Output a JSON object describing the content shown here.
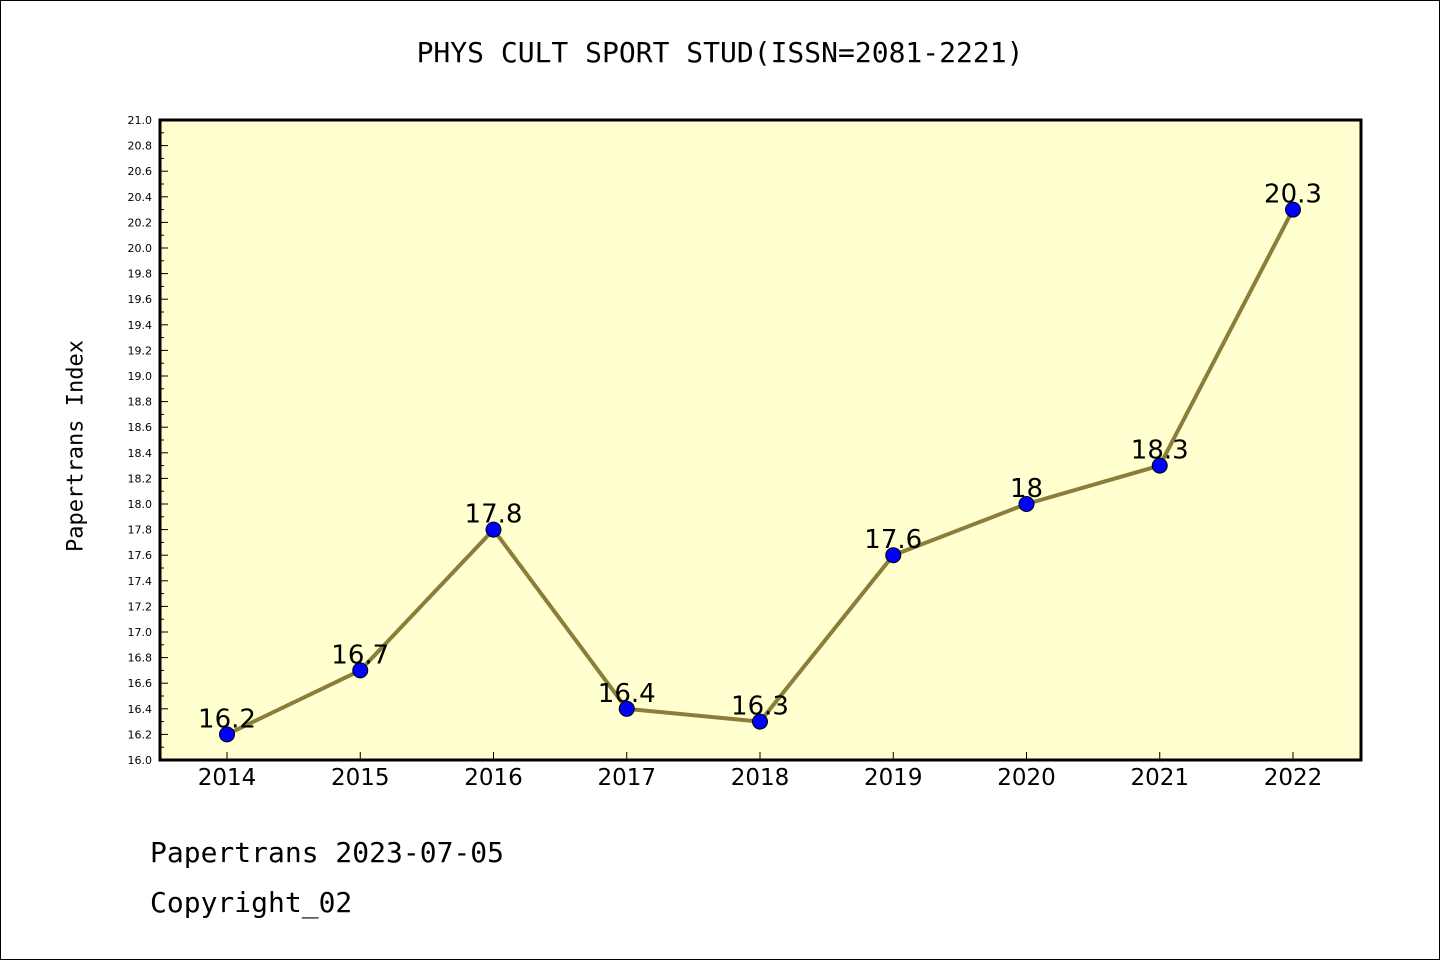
{
  "chart_data": {
    "type": "line",
    "title": "PHYS CULT SPORT STUD(ISSN=2081-2221)",
    "xlabel": "",
    "ylabel": "Papertrans Index",
    "categories": [
      "2014",
      "2015",
      "2016",
      "2017",
      "2018",
      "2019",
      "2020",
      "2021",
      "2022"
    ],
    "series": [
      {
        "values": [
          16.2,
          16.7,
          17.8,
          16.4,
          16.3,
          17.6,
          18.0,
          18.3,
          20.3
        ]
      }
    ],
    "data_labels": [
      "16.2",
      "16.7",
      "17.8",
      "16.4",
      "16.3",
      "17.6",
      "18",
      "18.3",
      "20.3"
    ],
    "ylim": [
      16.0,
      21.0
    ],
    "ytick_labels": [
      "16.0",
      "16.2",
      "16.4",
      "16.6",
      "16.8",
      "17.0",
      "17.2",
      "17.4",
      "17.6",
      "17.8",
      "18.0",
      "18.2",
      "18.4",
      "18.6",
      "18.8",
      "19.0",
      "19.2",
      "19.4",
      "19.6",
      "19.8",
      "20.0",
      "20.2",
      "20.4",
      "20.6",
      "20.8",
      "21.0"
    ],
    "grid": false,
    "legend": "none",
    "colors": {
      "plot_background": "#ffffd0",
      "line": "#8b7d3a",
      "marker": "#0000ff"
    }
  },
  "footer": {
    "line1": "Papertrans 2023-07-05",
    "line2": "Copyright_02"
  }
}
